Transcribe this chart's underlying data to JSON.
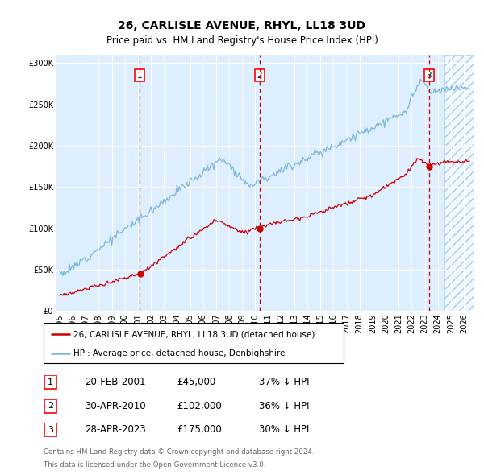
{
  "title": "26, CARLISLE AVENUE, RHYL, LL18 3UD",
  "subtitle": "Price paid vs. HM Land Registry's House Price Index (HPI)",
  "legend_line1": "26, CARLISLE AVENUE, RHYL, LL18 3UD (detached house)",
  "legend_line2": "HPI: Average price, detached house, Denbighshire",
  "footer1": "Contains HM Land Registry data © Crown copyright and database right 2024.",
  "footer2": "This data is licensed under the Open Government Licence v3.0.",
  "transactions": [
    {
      "num": 1,
      "date": "20-FEB-2001",
      "price": "£45,000",
      "pct": "37% ↓ HPI",
      "year": 2001.13
    },
    {
      "num": 2,
      "date": "30-APR-2010",
      "price": "£102,000",
      "pct": "36% ↓ HPI",
      "year": 2010.33
    },
    {
      "num": 3,
      "date": "28-APR-2023",
      "price": "£175,000",
      "pct": "30% ↓ HPI",
      "year": 2023.33
    }
  ],
  "hpi_color": "#7ab8d8",
  "price_color": "#cc0000",
  "vline_color": "#cc0000",
  "background_color": "#ddeeff",
  "ylim": [
    0,
    310000
  ],
  "xlim_start": 1994.7,
  "xlim_end": 2026.8,
  "yticks": [
    0,
    50000,
    100000,
    150000,
    200000,
    250000,
    300000
  ]
}
